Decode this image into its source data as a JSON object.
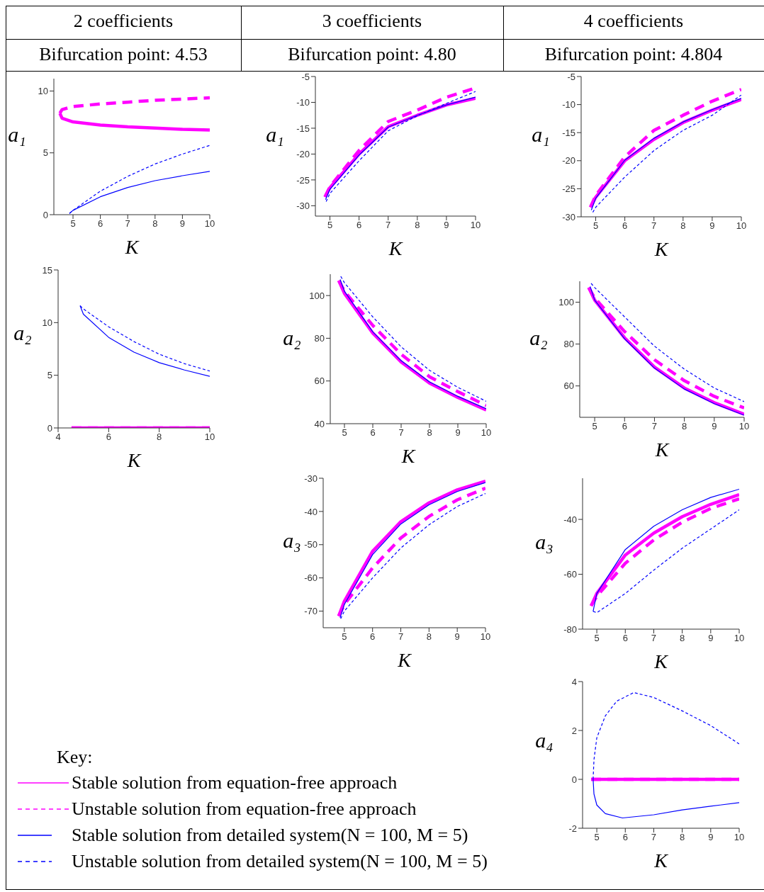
{
  "chart_data": [
    {
      "type": "line",
      "title": "2 coefficients",
      "subtitle": "Bifurcation point: 4.53",
      "xlabel": "K",
      "ylabel": "a₁",
      "xlim": [
        4.3,
        10
      ],
      "xticks": [
        5,
        6,
        7,
        8,
        9,
        10
      ],
      "ylim": [
        0,
        11
      ],
      "yticks": [
        0,
        5,
        10
      ],
      "series": [
        {
          "color": "#ff00ff",
          "line_style": "solid",
          "x": [
            4.52,
            4.6,
            5,
            6,
            7,
            8,
            9,
            10
          ],
          "values": [
            8.2,
            7.8,
            7.5,
            7.25,
            7.1,
            7.0,
            6.9,
            6.85
          ]
        },
        {
          "color": "#ff00ff",
          "line_style": "dashed",
          "x": [
            4.52,
            4.6,
            5,
            6,
            7,
            8,
            9,
            10
          ],
          "values": [
            8.2,
            8.5,
            8.75,
            8.95,
            9.1,
            9.25,
            9.35,
            9.45
          ]
        },
        {
          "color": "#0000ff",
          "line_style": "solid",
          "x": [
            4.87,
            5,
            6,
            7,
            8,
            9,
            10
          ],
          "values": [
            0.1,
            0.35,
            1.45,
            2.2,
            2.75,
            3.15,
            3.5
          ]
        },
        {
          "color": "#0000ff",
          "line_style": "dashed",
          "x": [
            4.87,
            5,
            6,
            7,
            8,
            9,
            10
          ],
          "values": [
            0.1,
            0.35,
            1.9,
            3.1,
            4.1,
            4.9,
            5.6
          ]
        }
      ]
    },
    {
      "type": "line",
      "title": "3 coefficients",
      "subtitle": "Bifurcation point: 4.80",
      "xlabel": "K",
      "ylabel": "a₁",
      "xlim": [
        4.5,
        10
      ],
      "xticks": [
        5,
        6,
        7,
        8,
        9,
        10
      ],
      "ylim": [
        -32,
        -5
      ],
      "yticks": [
        -30,
        -25,
        -20,
        -15,
        -10,
        -5
      ],
      "series": [
        {
          "color": "#ff00ff",
          "line_style": "solid",
          "x": [
            4.83,
            5,
            6,
            7,
            8,
            9,
            10
          ],
          "values": [
            -28.3,
            -26.5,
            -20,
            -14.7,
            -12.5,
            -10.5,
            -9.2
          ]
        },
        {
          "color": "#ff00ff",
          "line_style": "dashed",
          "x": [
            4.83,
            5,
            6,
            7,
            8,
            9,
            10
          ],
          "values": [
            -28.3,
            -26.3,
            -19.3,
            -13.7,
            -11.5,
            -9,
            -7.2
          ]
        },
        {
          "color": "#0000ff",
          "line_style": "solid",
          "x": [
            4.85,
            5,
            6,
            7,
            8,
            9,
            10
          ],
          "values": [
            -28.8,
            -26.8,
            -20.2,
            -14.8,
            -12.5,
            -10.5,
            -9
          ]
        },
        {
          "color": "#0000ff",
          "line_style": "dashed",
          "x": [
            4.87,
            5,
            6,
            7,
            8,
            9,
            10
          ],
          "values": [
            -29.2,
            -27.6,
            -21.3,
            -15.5,
            -12.6,
            -10.2,
            -7.9
          ]
        }
      ]
    },
    {
      "type": "line",
      "title": "4 coefficients",
      "subtitle": "Bifurcation point: 4.804",
      "xlabel": "K",
      "ylabel": "a₁",
      "xlim": [
        4.5,
        10
      ],
      "xticks": [
        5,
        6,
        7,
        8,
        9,
        10
      ],
      "ylim": [
        -30,
        -5
      ],
      "yticks": [
        -30,
        -25,
        -20,
        -15,
        -10,
        -5
      ],
      "series": [
        {
          "color": "#ff00ff",
          "line_style": "solid",
          "x": [
            4.82,
            5,
            6,
            7,
            8,
            9,
            10
          ],
          "values": [
            -28.3,
            -26.5,
            -20,
            -16.2,
            -13.2,
            -11,
            -9.1
          ]
        },
        {
          "color": "#ff00ff",
          "line_style": "dashed",
          "x": [
            4.82,
            5,
            6,
            7,
            8,
            9,
            10
          ],
          "values": [
            -28.3,
            -26.2,
            -19.3,
            -14.6,
            -11.9,
            -9.4,
            -7.3
          ]
        },
        {
          "color": "#0000ff",
          "line_style": "solid",
          "x": [
            4.85,
            5,
            6,
            7,
            8,
            9,
            10
          ],
          "values": [
            -28.8,
            -26.7,
            -19.9,
            -16,
            -13.1,
            -10.9,
            -8.9
          ]
        },
        {
          "color": "#0000ff",
          "line_style": "dashed",
          "x": [
            4.9,
            5,
            6,
            7,
            8,
            9,
            10
          ],
          "values": [
            -29.2,
            -28.3,
            -22.9,
            -18.2,
            -14.6,
            -11.9,
            -8.3
          ]
        }
      ]
    },
    {
      "type": "line",
      "xlabel": "K",
      "ylabel": "a₂",
      "xlim": [
        4,
        10
      ],
      "xticks": [
        4,
        6,
        8,
        10
      ],
      "ylim": [
        0,
        15
      ],
      "yticks": [
        0,
        5,
        10,
        15
      ],
      "series": [
        {
          "color": "#ff00ff",
          "line_style": "solid",
          "x": [
            4.53,
            10
          ],
          "values": [
            0,
            0
          ]
        },
        {
          "color": "#ff00ff",
          "line_style": "dashed",
          "x": [
            4.53,
            10
          ],
          "values": [
            0,
            0
          ]
        },
        {
          "color": "#0000ff",
          "line_style": "solid",
          "x": [
            4.87,
            5,
            6,
            7,
            8,
            9,
            10
          ],
          "values": [
            11.6,
            10.8,
            8.6,
            7.2,
            6.2,
            5.5,
            4.9
          ]
        },
        {
          "color": "#0000ff",
          "line_style": "dashed",
          "x": [
            4.87,
            5,
            6,
            7,
            8,
            9,
            10
          ],
          "values": [
            11.6,
            11.3,
            9.6,
            8.2,
            7.0,
            6.1,
            5.4
          ]
        }
      ]
    },
    {
      "type": "line",
      "xlabel": "K",
      "ylabel": "a₂",
      "xlim": [
        4.5,
        10
      ],
      "xticks": [
        5,
        6,
        7,
        8,
        9,
        10
      ],
      "ylim": [
        40,
        110
      ],
      "yticks": [
        40,
        60,
        80,
        100
      ],
      "series": [
        {
          "color": "#ff00ff",
          "line_style": "solid",
          "x": [
            4.8,
            5,
            6,
            7,
            8,
            9,
            10
          ],
          "values": [
            107,
            101,
            82.4,
            68.9,
            59,
            52.3,
            46.4
          ]
        },
        {
          "color": "#ff00ff",
          "line_style": "dashed",
          "x": [
            4.8,
            5,
            6,
            7,
            8,
            9,
            10
          ],
          "values": [
            107,
            102,
            86,
            72.5,
            62,
            55,
            48.5
          ]
        },
        {
          "color": "#0000ff",
          "line_style": "solid",
          "x": [
            4.85,
            5,
            6,
            7,
            8,
            9,
            10
          ],
          "values": [
            107.5,
            102,
            83,
            69.5,
            59.6,
            52.8,
            47
          ]
        },
        {
          "color": "#0000ff",
          "line_style": "dashed",
          "x": [
            4.87,
            5,
            6,
            7,
            8,
            9,
            10
          ],
          "values": [
            109,
            106,
            90,
            76,
            65,
            57,
            50.5
          ]
        }
      ]
    },
    {
      "type": "line",
      "xlabel": "K",
      "ylabel": "a₂",
      "xlim": [
        4.5,
        10
      ],
      "xticks": [
        5,
        6,
        7,
        8,
        9,
        10
      ],
      "ylim": [
        45,
        110
      ],
      "yticks": [
        60,
        80,
        100
      ],
      "series": [
        {
          "color": "#ff00ff",
          "line_style": "solid",
          "x": [
            4.8,
            5,
            6,
            7,
            8,
            9,
            10
          ],
          "values": [
            107,
            101,
            83,
            69,
            59,
            52,
            46.5
          ]
        },
        {
          "color": "#ff00ff",
          "line_style": "dashed",
          "x": [
            4.8,
            5,
            6,
            7,
            8,
            9,
            10
          ],
          "values": [
            107,
            102,
            86,
            72.5,
            62.5,
            55,
            49.5
          ]
        },
        {
          "color": "#0000ff",
          "line_style": "solid",
          "x": [
            4.85,
            5,
            6,
            7,
            8,
            9,
            10
          ],
          "values": [
            107.5,
            101,
            82.5,
            68.5,
            58.5,
            51.5,
            46
          ]
        },
        {
          "color": "#0000ff",
          "line_style": "dashed",
          "x": [
            4.88,
            5,
            6,
            7,
            8,
            9,
            10
          ],
          "values": [
            109,
            107,
            93,
            79,
            68,
            59,
            52.5
          ]
        }
      ]
    },
    {
      "type": "line",
      "xlabel": "K",
      "ylabel": "a₃",
      "xlim": [
        4.25,
        10
      ],
      "xticks": [
        5,
        6,
        7,
        8,
        9,
        10
      ],
      "ylim": [
        -75,
        -30
      ],
      "yticks": [
        -70,
        -60,
        -50,
        -40,
        -30
      ],
      "series": [
        {
          "color": "#ff00ff",
          "line_style": "solid",
          "x": [
            4.8,
            5,
            6,
            7,
            8,
            9,
            10
          ],
          "values": [
            -71.5,
            -67,
            -52,
            -43.1,
            -37.4,
            -33.5,
            -30.9
          ]
        },
        {
          "color": "#ff00ff",
          "line_style": "dashed",
          "x": [
            4.8,
            5,
            6,
            7,
            8,
            9,
            10
          ],
          "values": [
            -71.5,
            -68,
            -57,
            -48,
            -41.5,
            -36.5,
            -33
          ]
        },
        {
          "color": "#0000ff",
          "line_style": "solid",
          "x": [
            4.85,
            5,
            6,
            7,
            8,
            9,
            10
          ],
          "values": [
            -72,
            -68,
            -53,
            -43.8,
            -38,
            -34,
            -31.3
          ]
        },
        {
          "color": "#0000ff",
          "line_style": "dashed",
          "x": [
            4.87,
            5,
            6,
            7,
            8,
            9,
            10
          ],
          "values": [
            -72.3,
            -70,
            -60,
            -51,
            -44,
            -38.5,
            -34.6
          ]
        }
      ]
    },
    {
      "type": "line",
      "xlabel": "K",
      "ylabel": "a₃",
      "xlim": [
        4.5,
        10
      ],
      "xticks": [
        5,
        6,
        7,
        8,
        9,
        10
      ],
      "ylim": [
        -80,
        -25
      ],
      "yticks": [
        -80,
        -60,
        -40
      ],
      "series": [
        {
          "color": "#ff00ff",
          "line_style": "solid",
          "x": [
            4.8,
            5,
            6,
            7,
            8,
            9,
            10
          ],
          "values": [
            -71.5,
            -67,
            -53,
            -45,
            -39,
            -34.5,
            -31
          ]
        },
        {
          "color": "#ff00ff",
          "line_style": "dashed",
          "x": [
            4.8,
            5,
            6,
            7,
            8,
            9,
            10
          ],
          "values": [
            -71.5,
            -68,
            -56,
            -47.5,
            -41,
            -36,
            -32.5
          ]
        },
        {
          "color": "#0000ff",
          "line_style": "solid",
          "x": [
            4.87,
            5,
            6,
            7,
            8,
            9,
            10
          ],
          "values": [
            -73.5,
            -67,
            -51,
            -42.5,
            -36.5,
            -32,
            -29
          ]
        },
        {
          "color": "#0000ff",
          "line_style": "dashed",
          "x": [
            4.87,
            5,
            6,
            7,
            8,
            9,
            10
          ],
          "values": [
            -73.5,
            -74,
            -67,
            -58.5,
            -50.5,
            -43.5,
            -36.5
          ]
        }
      ]
    },
    {
      "type": "line",
      "xlabel": "K",
      "ylabel": "a₄",
      "xlim": [
        4.5,
        10
      ],
      "xticks": [
        5,
        6,
        7,
        8,
        9,
        10
      ],
      "ylim": [
        -2,
        4
      ],
      "yticks": [
        -2,
        0,
        2,
        4
      ],
      "legend": "left",
      "legend_title": "Key:",
      "series": [
        {
          "name": "Stable solution from equation-free approach",
          "color": "#ff00ff",
          "line_style": "solid",
          "x": [
            4.8,
            10
          ],
          "values": [
            0,
            0
          ]
        },
        {
          "name": "Unstable solution from equation-free approach",
          "color": "#ff00ff",
          "line_style": "dashed",
          "x": [
            4.8,
            10
          ],
          "values": [
            0,
            0
          ]
        },
        {
          "name": "Stable solution from detailed system(N = 100, M = 5)",
          "color": "#0000ff",
          "line_style": "solid",
          "x": [
            4.87,
            4.9,
            5,
            5.3,
            5.9,
            7,
            8,
            9,
            10
          ],
          "values": [
            0,
            -0.6,
            -1.05,
            -1.4,
            -1.58,
            -1.45,
            -1.25,
            -1.1,
            -0.95
          ]
        },
        {
          "name": "Unstable solution from detailed system(N = 100, M = 5)",
          "color": "#0000ff",
          "line_style": "dashed",
          "x": [
            4.87,
            4.9,
            5,
            5.3,
            5.7,
            6.3,
            7,
            8,
            9,
            10
          ],
          "values": [
            0,
            0.8,
            1.7,
            2.6,
            3.2,
            3.55,
            3.35,
            2.8,
            2.2,
            1.45
          ]
        }
      ]
    }
  ]
}
